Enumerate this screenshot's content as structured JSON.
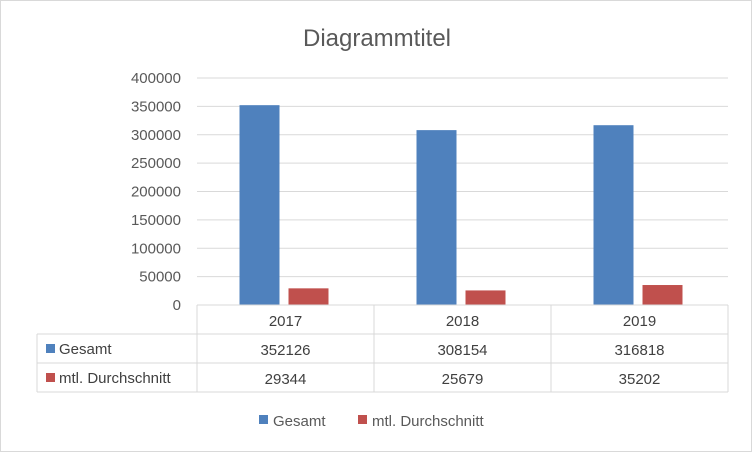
{
  "chart_data": {
    "type": "bar",
    "title": "Diagrammtitel",
    "categories": [
      "2017",
      "2018",
      "2019"
    ],
    "series": [
      {
        "name": "Gesamt",
        "values": [
          352126,
          308154,
          316818
        ],
        "color": "#4f81bd"
      },
      {
        "name": "mtl. Durchschnitt",
        "values": [
          29344,
          25679,
          35202
        ],
        "color": "#c0504d"
      }
    ],
    "ylim": [
      0,
      400000
    ],
    "yticks": [
      "0",
      "50000",
      "100000",
      "150000",
      "200000",
      "250000",
      "300000",
      "350000",
      "400000"
    ],
    "data_table": true,
    "grid": true,
    "legend_position": "bottom"
  }
}
